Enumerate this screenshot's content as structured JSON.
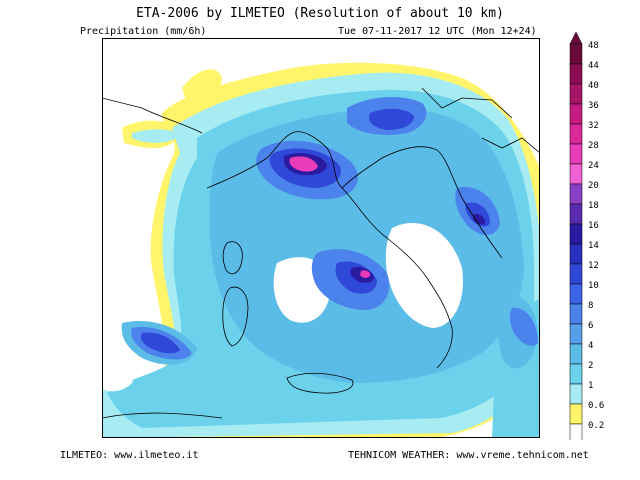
{
  "header": {
    "title": "ETA-2006 by ILMETEO (Resolution of about 10 km)",
    "variable": "Precipitation (mm/6h)",
    "valid_time": "Tue 07-11-2017 12 UTC (Mon 12+24)"
  },
  "footer": {
    "left": "ILMETEO: www.ilmeteo.it",
    "right": "TEHNICOM WEATHER: www.vreme.tehnicom.net"
  },
  "legend": {
    "levels": [
      {
        "label": "48",
        "color": "#6a0a3a"
      },
      {
        "label": "44",
        "color": "#8c0e52"
      },
      {
        "label": "40",
        "color": "#a81468"
      },
      {
        "label": "36",
        "color": "#c41c80"
      },
      {
        "label": "32",
        "color": "#d8289a"
      },
      {
        "label": "28",
        "color": "#e83cb8"
      },
      {
        "label": "24",
        "color": "#f060d4"
      },
      {
        "label": "20",
        "color": "#8c40c8"
      },
      {
        "label": "18",
        "color": "#5a2ab0"
      },
      {
        "label": "16",
        "color": "#2a1aa0"
      },
      {
        "label": "14",
        "color": "#2830c0"
      },
      {
        "label": "12",
        "color": "#3048d8"
      },
      {
        "label": "10",
        "color": "#3c64e8"
      },
      {
        "label": "8",
        "color": "#4c82ec"
      },
      {
        "label": "6",
        "color": "#56a0ea"
      },
      {
        "label": "4",
        "color": "#5cbce8"
      },
      {
        "label": "2",
        "color": "#6cd2ec"
      },
      {
        "label": "1",
        "color": "#a6ecf2"
      },
      {
        "label": "0.6",
        "color": "#fff46a"
      },
      {
        "label": "0.2",
        "color": "#ffffff"
      }
    ]
  },
  "colors": {
    "yellow": "#fff46a",
    "light_cyan": "#a6ecf2",
    "cyan": "#6cd2ec",
    "sky": "#5cbce8",
    "blue": "#4c82ec",
    "deep_blue": "#3048d8",
    "navy": "#2a1aa0",
    "magenta": "#e83cb8",
    "border": "#000000"
  }
}
